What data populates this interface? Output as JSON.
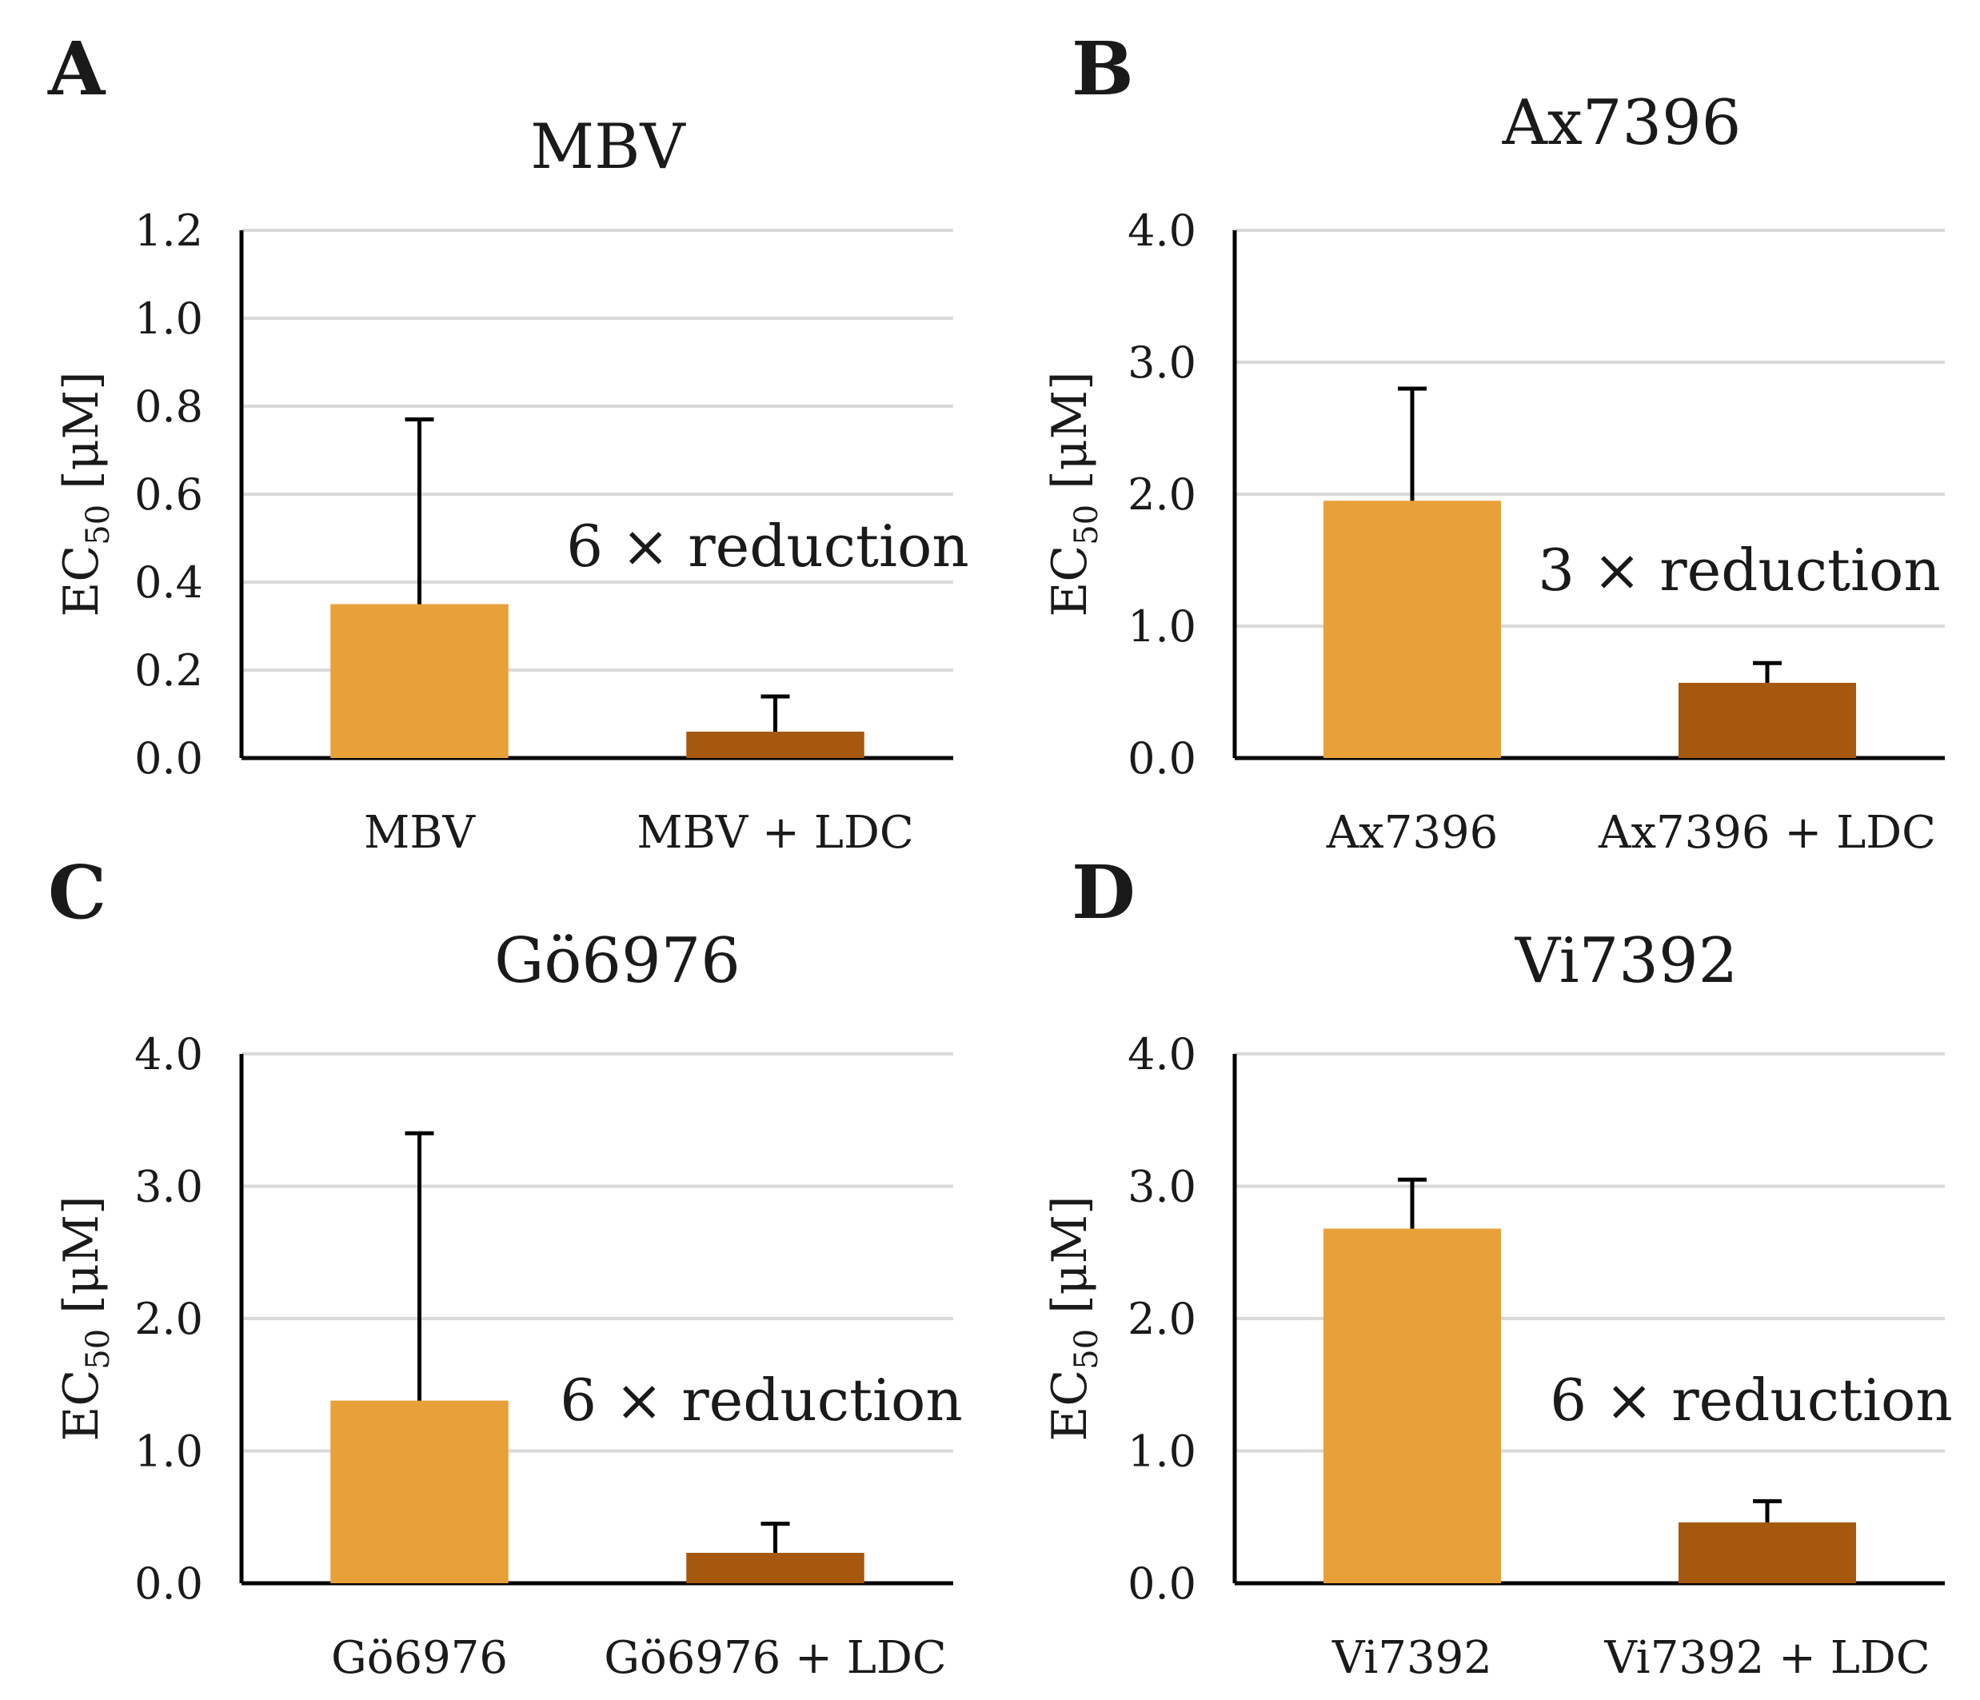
{
  "figure": {
    "colors": {
      "bar_light": "#E8A038",
      "bar_dark": "#A6580F",
      "grid": "#D9D9D9",
      "axis": "#000000",
      "text": "#1A1A1A"
    }
  },
  "chart_data": [
    {
      "panel": "A",
      "type": "bar",
      "title": "MBV",
      "ylabel_main": "EC",
      "ylabel_sub": "50",
      "ylabel_unit": " [μM]",
      "categories": [
        "MBV",
        "MBV + LDC"
      ],
      "values": [
        0.35,
        0.06
      ],
      "error_upper": [
        0.77,
        0.14
      ],
      "ylim": [
        0,
        1.2
      ],
      "yticks": [
        "0.0",
        "0.2",
        "0.4",
        "0.6",
        "0.8",
        "1.0",
        "1.2"
      ],
      "annotation": "6 × reduction",
      "grid": true
    },
    {
      "panel": "B",
      "type": "bar",
      "title": "Ax7396",
      "ylabel_main": "EC",
      "ylabel_sub": "50",
      "ylabel_unit": " [μM]",
      "categories": [
        "Ax7396",
        "Ax7396 + LDC"
      ],
      "values": [
        1.95,
        0.57
      ],
      "error_upper": [
        2.8,
        0.72
      ],
      "ylim": [
        0,
        4.0
      ],
      "yticks": [
        "0.0",
        "1.0",
        "2.0",
        "3.0",
        "4.0"
      ],
      "annotation": "3 × reduction",
      "grid": true
    },
    {
      "panel": "C",
      "type": "bar",
      "title": "Gö6976",
      "ylabel_main": "EC",
      "ylabel_sub": "50",
      "ylabel_unit": " [μM]",
      "categories": [
        "Gö6976",
        "Gö6976 + LDC"
      ],
      "values": [
        1.38,
        0.23
      ],
      "error_upper": [
        3.4,
        0.45
      ],
      "ylim": [
        0,
        4.0
      ],
      "yticks": [
        "0.0",
        "1.0",
        "2.0",
        "3.0",
        "4.0"
      ],
      "annotation": "6 × reduction",
      "grid": true
    },
    {
      "panel": "D",
      "type": "bar",
      "title": "Vi7392",
      "ylabel_main": "EC",
      "ylabel_sub": "50",
      "ylabel_unit": " [μM]",
      "categories": [
        "Vi7392",
        "Vi7392 + LDC"
      ],
      "values": [
        2.68,
        0.46
      ],
      "error_upper": [
        3.05,
        0.62
      ],
      "ylim": [
        0,
        4.0
      ],
      "yticks": [
        "0.0",
        "1.0",
        "2.0",
        "3.0",
        "4.0"
      ],
      "annotation": "6 × reduction",
      "grid": true
    }
  ]
}
